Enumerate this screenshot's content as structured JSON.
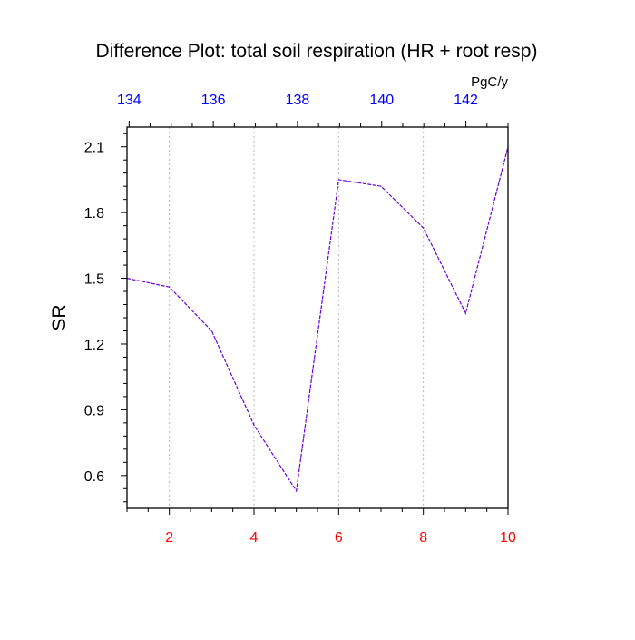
{
  "chart_data": {
    "type": "line",
    "title": "Difference Plot: total soil respiration (HR + root resp)",
    "units_label": "PgC/y",
    "ylabel": "SR",
    "xlabel": "",
    "x": [
      1,
      2,
      3,
      4,
      5,
      6,
      7,
      8,
      9,
      10
    ],
    "series": [
      {
        "values": [
          1.5,
          1.46,
          1.26,
          0.83,
          0.53,
          1.95,
          1.92,
          1.73,
          1.34,
          2.1
        ]
      }
    ],
    "xlim": [
      1,
      10
    ],
    "ylim": [
      0.45,
      2.19
    ],
    "x_ticks": [
      2,
      4,
      6,
      8,
      10
    ],
    "y_ticks": [
      0.6,
      0.9,
      1.2,
      1.5,
      1.8,
      2.1
    ],
    "y_tick_labels": [
      "0.6",
      "0.9",
      "1.2",
      "1.5",
      "1.8",
      "2.1"
    ],
    "top_axis": {
      "ticks": [
        134,
        136,
        138,
        140,
        142
      ],
      "range": [
        133.95,
        143.0
      ]
    },
    "grid": "vertical dotted at bottom x ticks",
    "colors": {
      "line": "#6a00d8",
      "bottom_ticks": "#ff0000",
      "top_ticks": "#0000ff",
      "axis": "#000000",
      "grid": "#b4b4b4"
    }
  }
}
